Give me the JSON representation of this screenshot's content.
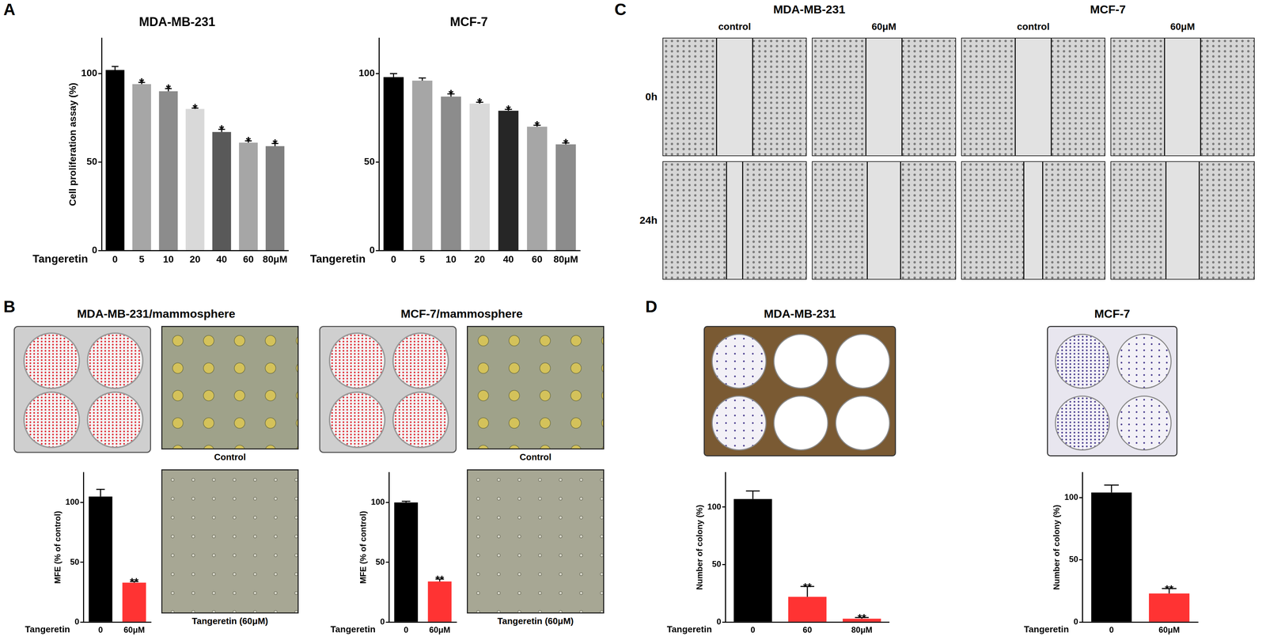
{
  "panels": [
    "A",
    "B",
    "C",
    "D"
  ],
  "chart_data": [
    {
      "type": "bar",
      "title": "MDA-MB-231",
      "x_label": "Tangeretin",
      "y_label": "Cell proliferation assay (%)",
      "categories": [
        "0",
        "5",
        "10",
        "20",
        "40",
        "60",
        "80μM"
      ],
      "values": [
        102,
        94,
        90,
        80,
        67,
        61,
        59
      ],
      "errors": [
        2,
        1,
        1.5,
        0.5,
        1.5,
        1,
        1.5
      ],
      "significance": [
        null,
        "*",
        "*",
        "*",
        "*",
        "*",
        "*"
      ],
      "colors": [
        "#000000",
        "#a6a6a6",
        "#8c8c8c",
        "#d9d9d9",
        "#595959",
        "#a6a6a6",
        "#7f7f7f"
      ],
      "ylim": [
        0,
        120
      ],
      "yticks": [
        0,
        50,
        100
      ],
      "grid": false
    },
    {
      "type": "bar",
      "title": "MCF-7",
      "x_label": "Tangeretin",
      "categories": [
        "0",
        "5",
        "10",
        "20",
        "40",
        "60",
        "80μM"
      ],
      "values": [
        98,
        96,
        87,
        83,
        79,
        70,
        60
      ],
      "errors": [
        2,
        1.5,
        1.5,
        0.8,
        0.8,
        0.8,
        0.8
      ],
      "significance": [
        null,
        null,
        "*",
        "*",
        "*",
        "*",
        "*"
      ],
      "colors": [
        "#000000",
        "#a6a6a6",
        "#8c8c8c",
        "#d9d9d9",
        "#262626",
        "#a6a6a6",
        "#8c8c8c"
      ],
      "ylim": [
        0,
        120
      ],
      "yticks": [
        0,
        50,
        100
      ],
      "grid": false
    },
    {
      "type": "bar",
      "title": "MDA-MB-231/mammosphere",
      "x_label": "Tangeretin",
      "y_label": "MFE (% of control)",
      "categories": [
        "0",
        "60μM"
      ],
      "values": [
        105,
        33
      ],
      "errors": [
        6,
        1
      ],
      "significance": [
        null,
        "**"
      ],
      "colors": [
        "#000000",
        "#ff3333"
      ],
      "ylim": [
        0,
        125
      ],
      "yticks": [
        0,
        50,
        100
      ],
      "grid": false
    },
    {
      "type": "bar",
      "title": "MCF-7/mammosphere",
      "x_label": "Tangeretin",
      "y_label": "MFE (% of control)",
      "categories": [
        "0",
        "60μM"
      ],
      "values": [
        100,
        34
      ],
      "errors": [
        1,
        2
      ],
      "significance": [
        null,
        "**"
      ],
      "colors": [
        "#000000",
        "#ff3333"
      ],
      "ylim": [
        0,
        125
      ],
      "yticks": [
        0,
        50,
        100
      ],
      "grid": false
    },
    {
      "type": "bar",
      "title": "MDA-MB-231",
      "x_label": "Tangeretin",
      "y_label": "Number of colony (%)",
      "categories": [
        "0",
        "60",
        "80μM"
      ],
      "values": [
        107,
        22,
        3
      ],
      "errors": [
        7,
        9,
        1
      ],
      "significance": [
        null,
        "**",
        "**"
      ],
      "colors": [
        "#000000",
        "#ff3333",
        "#ff3333"
      ],
      "ylim": [
        0,
        130
      ],
      "yticks": [
        0,
        50,
        100
      ],
      "grid": false
    },
    {
      "type": "bar",
      "title": "MCF-7",
      "x_label": "Tangeretin",
      "y_label": "Number of colony (%)",
      "categories": [
        "0",
        "60μM"
      ],
      "values": [
        104,
        23
      ],
      "errors": [
        6,
        4
      ],
      "significance": [
        null,
        "**"
      ],
      "colors": [
        "#000000",
        "#ff3333"
      ],
      "ylim": [
        0,
        120
      ],
      "yticks": [
        0,
        50,
        100
      ],
      "grid": false
    }
  ],
  "photos": {
    "B": [
      {
        "captions": [
          "Control",
          "Tangeretin (60μM)"
        ]
      },
      {
        "captions": [
          "Control",
          "Tangeretin (60μM)"
        ]
      }
    ],
    "C": {
      "columns": [
        {
          "title": "MDA-MB-231",
          "conditions": [
            "control",
            "60μM"
          ]
        },
        {
          "title": "MCF-7",
          "conditions": [
            "control",
            "60μM"
          ]
        }
      ],
      "rows": [
        "0h",
        "24h"
      ]
    }
  }
}
